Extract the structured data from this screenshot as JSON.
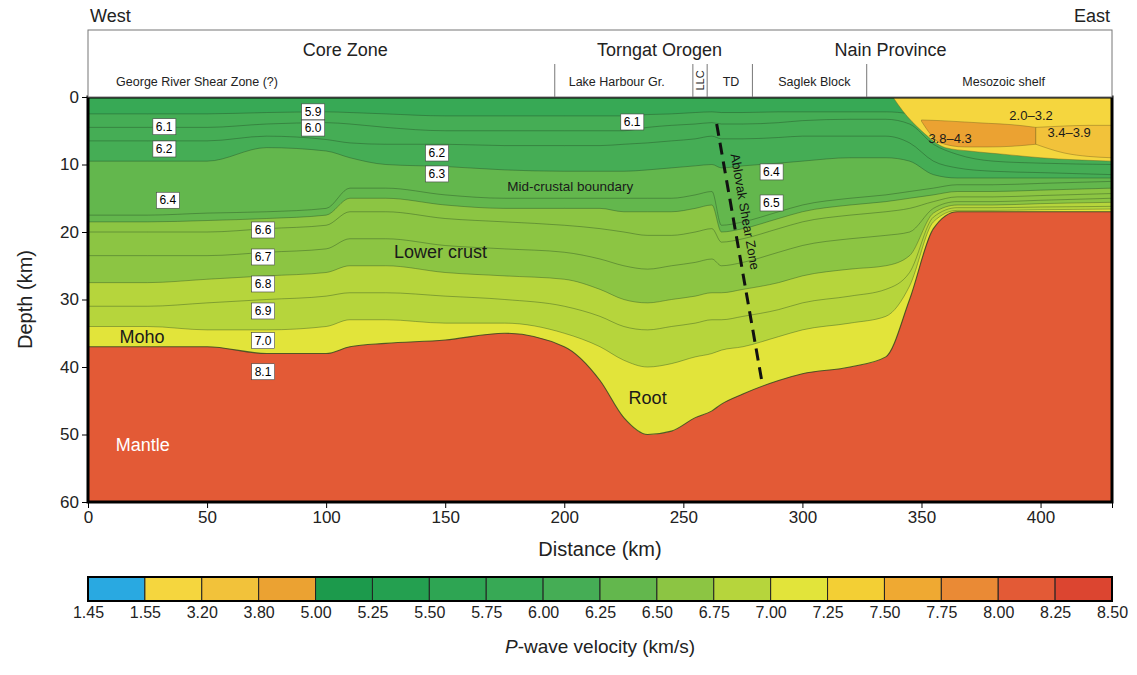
{
  "chart_data": {
    "type": "velocity_section",
    "x_label": "Distance (km)",
    "y_label": "Depth (km)",
    "xlim": [
      0,
      430
    ],
    "ylim": [
      0,
      60
    ],
    "xticks": [
      0,
      50,
      100,
      150,
      200,
      250,
      300,
      350,
      400
    ],
    "yticks": [
      0,
      10,
      20,
      30,
      40,
      50,
      60
    ],
    "header": {
      "west": "West",
      "east": "East",
      "regions": [
        {
          "text": "Core Zone",
          "x": 108
        },
        {
          "text": "Torngat Orogen",
          "x": 240
        },
        {
          "text": "Nain Province",
          "x": 337
        }
      ],
      "units": [
        {
          "text": "George River Shear Zone (?)",
          "x": 45.8
        },
        {
          "text": "Lake Harbour Gr.",
          "x": 222
        },
        {
          "text": "LLC",
          "x": 257
        },
        {
          "text": "TD",
          "x": 270
        },
        {
          "text": "Saglek Block",
          "x": 305
        },
        {
          "text": "Mesozoic shelf",
          "x": 384.5
        }
      ],
      "divisions": [
        196,
        254,
        260,
        279,
        327
      ]
    },
    "x": [
      0,
      25,
      50,
      75,
      100,
      110,
      125,
      150,
      175,
      200,
      215,
      225,
      235,
      245,
      255,
      262,
      266,
      275,
      290,
      300,
      320,
      335,
      345,
      355,
      365,
      380,
      400,
      430
    ],
    "zones": [
      {
        "velocity": 5.9,
        "depths": [
          0,
          0,
          0,
          0,
          0,
          0,
          0,
          0,
          0,
          0,
          0,
          0,
          0,
          0,
          0,
          0,
          0,
          0,
          0,
          0,
          0,
          0,
          0,
          0,
          0,
          0,
          0,
          0
        ]
      },
      {
        "velocity": 6.0,
        "depths": [
          2.5,
          2.5,
          2.5,
          2.3,
          2.2,
          2.3,
          2.5,
          2.8,
          2.8,
          2.8,
          2.8,
          2.8,
          2.6,
          2.5,
          2.3,
          2.2,
          2.3,
          2.3,
          2.2,
          2.2,
          2.2,
          2.2,
          2.5,
          5,
          7,
          8,
          8.5,
          9
        ]
      },
      {
        "velocity": 6.1,
        "depths": [
          4.5,
          4.5,
          4.5,
          4,
          3.8,
          4,
          4.5,
          5,
          5,
          5,
          5,
          5,
          4.5,
          4.2,
          4,
          3.8,
          4,
          4,
          3.8,
          3.5,
          3.3,
          3.3,
          4,
          7,
          8.5,
          9.5,
          9.8,
          10
        ]
      },
      {
        "velocity": 6.2,
        "depths": [
          6.5,
          6.5,
          6.5,
          5.8,
          6.3,
          6.8,
          7,
          7,
          7.2,
          7.2,
          7.2,
          7,
          6.8,
          6.5,
          6.2,
          5.8,
          6.2,
          6.2,
          6,
          5.8,
          5.8,
          5.8,
          6.8,
          9.5,
          10.5,
          11,
          11.2,
          11.5
        ]
      },
      {
        "velocity": 6.3,
        "depths": [
          9.5,
          9.5,
          9.5,
          7.5,
          8,
          9,
          10,
          10.3,
          10.8,
          11,
          11,
          11,
          10.8,
          10.5,
          10.2,
          10,
          10.5,
          10.2,
          9.8,
          9.5,
          9,
          9,
          9.5,
          11.5,
          12,
          12,
          12,
          12
        ]
      },
      {
        "velocity": 6.4,
        "depths": [
          17.5,
          17.5,
          17.2,
          17,
          16.5,
          13.5,
          13.5,
          14.5,
          15,
          15,
          15,
          15,
          15,
          15,
          14.5,
          14,
          19,
          18.5,
          17,
          16,
          15,
          14.5,
          14,
          13.5,
          13,
          13,
          12.8,
          12.5
        ]
      },
      {
        "velocity": 6.5,
        "depths": [
          18.5,
          18.5,
          18.3,
          18,
          17.5,
          15,
          15,
          16,
          16.5,
          16.5,
          16.5,
          17,
          17,
          17,
          16.5,
          16,
          20,
          19.5,
          18,
          17,
          16,
          15.5,
          15,
          14.5,
          14,
          14,
          13.8,
          13.5
        ]
      },
      {
        "velocity": 6.6,
        "depths": [
          20,
          20,
          20,
          19.5,
          19,
          17,
          17,
          18,
          18.5,
          19,
          19.5,
          20,
          20.5,
          20.5,
          20,
          19.5,
          21.5,
          21,
          19.5,
          18.5,
          17.5,
          17,
          16.5,
          15.5,
          14.8,
          14.8,
          14.6,
          14.3
        ]
      },
      {
        "velocity": 6.7,
        "depths": [
          23.5,
          23.5,
          23.5,
          23,
          22.5,
          21,
          21,
          22,
          22.5,
          23,
          24,
          25,
          25.5,
          25,
          24.5,
          24,
          25,
          24.5,
          23,
          22,
          21,
          20.5,
          20,
          16.5,
          15.5,
          15.5,
          15.3,
          15
        ]
      },
      {
        "velocity": 6.8,
        "depths": [
          27.5,
          27.5,
          27,
          26.5,
          26,
          25,
          25,
          26,
          26.5,
          27,
          28.5,
          30,
          30.5,
          30,
          29.5,
          29,
          29,
          28.5,
          27.5,
          26.5,
          25.5,
          25,
          23.5,
          17.2,
          16,
          16,
          15.8,
          15.6
        ]
      },
      {
        "velocity": 6.9,
        "depths": [
          31,
          31,
          30.5,
          30,
          29.5,
          29,
          29,
          29.5,
          30,
          31,
          32.5,
          34,
          34.5,
          34,
          33.5,
          33,
          33,
          32.5,
          31.5,
          30.5,
          29.5,
          28.5,
          26,
          17.8,
          16.4,
          16.4,
          16.3,
          16.2
        ]
      },
      {
        "velocity": 7.0,
        "depths": [
          34,
          34,
          34.5,
          34.5,
          34,
          33,
          33,
          33.5,
          33.5,
          35,
          37,
          39,
          40,
          39.5,
          38.5,
          38,
          37.5,
          37,
          35.5,
          34.5,
          33.5,
          32.5,
          28,
          18.5,
          16.8,
          16.8,
          16.7,
          16.6
        ]
      },
      {
        "velocity": 8.1,
        "depths": [
          37,
          37,
          37,
          38,
          38,
          37,
          36.5,
          36,
          35,
          37,
          42,
          47.5,
          50,
          49.5,
          47.5,
          46.5,
          45.5,
          44,
          42,
          41,
          40,
          38.5,
          30,
          19.5,
          17,
          17,
          17,
          17
        ]
      }
    ],
    "sediments": [
      {
        "velocity": 2.6,
        "x": [
          338,
          342,
          350,
          360,
          370,
          385,
          400,
          430
        ],
        "top": [
          0,
          0,
          0,
          0,
          0,
          0,
          0,
          0
        ],
        "bottom": [
          0,
          2,
          5,
          7.5,
          8,
          8.5,
          9,
          9.5
        ]
      },
      {
        "velocity": 4.0,
        "x": [
          350,
          358,
          368,
          378,
          388,
          398
        ],
        "top": [
          3.4,
          3.5,
          3.7,
          3.9,
          4.1,
          4.5
        ],
        "bottom": [
          3.6,
          6.8,
          7.4,
          7.4,
          7.3,
          7
        ]
      },
      {
        "velocity": 3.6,
        "x": [
          398,
          410,
          420,
          430
        ],
        "top": [
          4.5,
          4.3,
          4.2,
          4.2
        ],
        "bottom": [
          7,
          8.3,
          8.8,
          9
        ]
      }
    ],
    "shear_zone": {
      "label": "Ablovak Shear Zone",
      "x": [
        264,
        283
      ],
      "depth": [
        4,
        42.2
      ]
    },
    "velocity_labels": [
      {
        "text": "5.9",
        "x": 94.5,
        "depth": 2.2
      },
      {
        "text": "6.0",
        "x": 94.5,
        "depth": 4.6
      },
      {
        "text": "6.1",
        "x": 32,
        "depth": 4.4
      },
      {
        "text": "6.2",
        "x": 32,
        "depth": 7.7
      },
      {
        "text": "6.4",
        "x": 33.5,
        "depth": 15.3
      },
      {
        "text": "6.2",
        "x": 146.5,
        "depth": 8.3
      },
      {
        "text": "6.3",
        "x": 146.5,
        "depth": 11.4
      },
      {
        "text": "6.1",
        "x": 228.5,
        "depth": 3.7
      },
      {
        "text": "6.4",
        "x": 287,
        "depth": 11.1
      },
      {
        "text": "6.5",
        "x": 287,
        "depth": 15.7
      },
      {
        "text": "6.6",
        "x": 73.5,
        "depth": 19.7
      },
      {
        "text": "6.7",
        "x": 73.5,
        "depth": 23.7
      },
      {
        "text": "6.8",
        "x": 73.5,
        "depth": 27.7
      },
      {
        "text": "6.9",
        "x": 73.5,
        "depth": 31.7
      },
      {
        "text": "7.0",
        "x": 73.5,
        "depth": 36.1
      },
      {
        "text": "8.1",
        "x": 73.5,
        "depth": 40.7
      }
    ],
    "annotations": [
      {
        "text": "Mid-crustal boundary",
        "x": 202.5,
        "depth": 13.3
      },
      {
        "text": "Lower crust",
        "x": 148,
        "depth": 23
      },
      {
        "text": "Root",
        "x": 235,
        "depth": 44.6
      },
      {
        "text": "Moho",
        "x": 22.7,
        "depth": 35.5
      },
      {
        "text": "Mantle",
        "x": 23,
        "depth": 51.5
      },
      {
        "text": "2.0–3.2",
        "x": 396,
        "depth": 2.7
      },
      {
        "text": "3.8–4.3",
        "x": 362,
        "depth": 6.1
      },
      {
        "text": "3.4–3.9",
        "x": 412,
        "depth": 5.3
      }
    ],
    "colorbar": {
      "label": "P-wave velocity (km/s)",
      "ticks": [
        1.45,
        1.55,
        {
          "value": 3.2,
          "label": "3.20"
        },
        {
          "value": 3.8,
          "label": "3.80"
        },
        {
          "value": 5,
          "label": "5.00"
        },
        5.25,
        {
          "value": 5.5,
          "label": "5.50"
        },
        5.75,
        {
          "value": 6,
          "label": "6.00"
        },
        6.25,
        {
          "value": 6.5,
          "label": "6.50"
        },
        6.75,
        {
          "value": 7,
          "label": "7.00"
        },
        7.25,
        {
          "value": 7.5,
          "label": "7.50"
        },
        7.75,
        {
          "value": 8,
          "label": "8.00"
        },
        8.25,
        {
          "value": 8.5,
          "label": "8.50"
        }
      ],
      "colors": [
        "#29a9e1",
        "#f5d63e",
        "#f2c23a",
        "#eba232",
        "#1c9a4c",
        "#24a050",
        "#2ea553",
        "#37a955",
        "#45ad55",
        "#63b74d",
        "#8cc543",
        "#b6d53c",
        "#e2e43a",
        "#f3cf34",
        "#efa932",
        "#ea8a35",
        "#e35a36",
        "#dc4530"
      ]
    }
  }
}
